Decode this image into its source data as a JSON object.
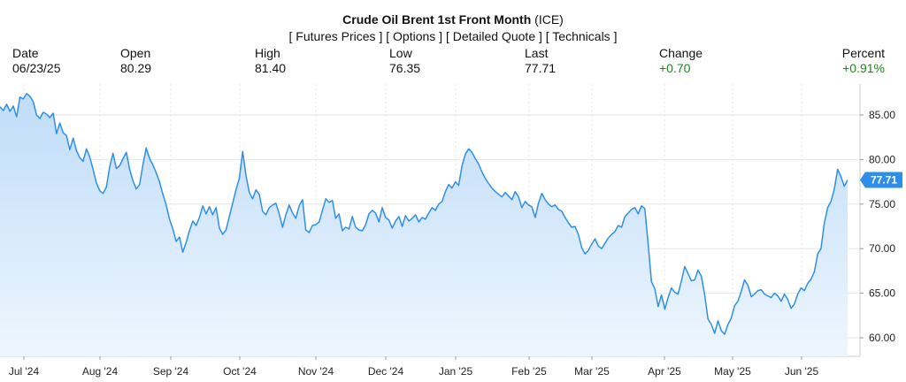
{
  "header": {
    "title": "Crude Oil Brent 1st Front Month",
    "exchange": "(ICE)",
    "links": [
      "[ Futures Prices ]",
      "[ Options ]",
      "[ Detailed Quote ]",
      "[ Technicals ]"
    ]
  },
  "stats": {
    "date": {
      "label": "Date",
      "value": "06/23/25"
    },
    "open": {
      "label": "Open",
      "value": "80.29"
    },
    "high": {
      "label": "High",
      "value": "81.40"
    },
    "low": {
      "label": "Low",
      "value": "76.35"
    },
    "last": {
      "label": "Last",
      "value": "77.71"
    },
    "change": {
      "label": "Change",
      "value": "+0.70"
    },
    "percent": {
      "label": "Percent",
      "value": "+0.91%"
    }
  },
  "colors": {
    "line": "#2f8fe8",
    "area_top": "#bfdcf9",
    "area_bottom": "#eef6fe",
    "grid": "#e6e6e6",
    "positive": "#1a8a1a",
    "last_badge": "#2f8fe8"
  },
  "chart_data": {
    "type": "area",
    "title": "Crude Oil Brent 1st Front Month",
    "xlabel": "",
    "ylabel": "",
    "ylim": [
      59,
      88
    ],
    "y_ticks": [
      "60.00",
      "65.00",
      "70.00",
      "75.00",
      "80.00",
      "85.00"
    ],
    "x_ticks": [
      "Jul '24",
      "Aug '24",
      "Sep '24",
      "Oct '24",
      "Nov '24",
      "Dec '24",
      "Jan '25",
      "Feb '25",
      "Mar '25",
      "Apr '25",
      "May '25",
      "Jun '25"
    ],
    "last_value": "77.71",
    "grid": true,
    "series": [
      {
        "values": [
          85.9,
          85.5,
          86.2,
          85.4,
          86.0,
          84.8,
          87.0,
          86.8,
          87.4,
          87.1,
          86.5,
          85.0,
          84.6,
          85.3,
          85.1,
          84.7,
          85.2,
          82.9,
          84.1,
          83.0,
          82.7,
          81.1,
          82.4,
          81.0,
          80.2,
          79.8,
          81.2,
          80.3,
          78.9,
          77.4,
          76.5,
          76.2,
          76.9,
          79.2,
          80.7,
          79.0,
          79.3,
          80.1,
          80.8,
          78.9,
          77.6,
          76.7,
          77.2,
          79.4,
          81.3,
          80.1,
          79.4,
          78.5,
          77.5,
          76.1,
          74.9,
          73.3,
          72.2,
          70.8,
          71.3,
          69.6,
          70.7,
          72.0,
          73.1,
          72.6,
          73.5,
          74.8,
          73.9,
          74.7,
          73.8,
          74.6,
          72.3,
          71.6,
          72.1,
          73.6,
          75.1,
          76.6,
          77.9,
          80.9,
          78.2,
          76.3,
          75.6,
          76.6,
          76.1,
          74.2,
          73.8,
          74.6,
          74.9,
          75.1,
          73.9,
          72.4,
          73.8,
          74.9,
          74.0,
          73.4,
          74.8,
          75.5,
          72.1,
          71.8,
          72.6,
          72.7,
          73.0,
          74.3,
          75.6,
          75.2,
          75.4,
          73.4,
          73.9,
          72.0,
          72.4,
          72.2,
          73.6,
          72.4,
          72.1,
          72.0,
          72.7,
          73.9,
          74.3,
          74.0,
          73.0,
          74.6,
          73.5,
          73.2,
          72.3,
          73.1,
          73.6,
          72.5,
          73.7,
          73.1,
          73.4,
          73.8,
          73.0,
          73.5,
          73.3,
          74.0,
          74.6,
          74.3,
          75.0,
          75.3,
          76.4,
          77.2,
          76.8,
          77.5,
          77.1,
          79.3,
          80.6,
          81.2,
          80.8,
          80.1,
          79.5,
          78.6,
          77.9,
          77.3,
          76.8,
          76.4,
          76.1,
          75.8,
          76.3,
          75.9,
          75.5,
          76.4,
          75.8,
          74.6,
          75.3,
          74.9,
          74.7,
          73.5,
          75.1,
          76.2,
          75.5,
          75.0,
          74.7,
          74.9,
          74.4,
          74.2,
          73.5,
          72.9,
          72.4,
          72.5,
          71.6,
          70.1,
          69.4,
          69.8,
          70.5,
          71.1,
          70.3,
          70.0,
          70.6,
          71.2,
          71.6,
          71.9,
          72.6,
          72.4,
          73.6,
          74.0,
          74.4,
          74.6,
          73.9,
          74.8,
          74.5,
          70.5,
          66.3,
          65.5,
          63.5,
          64.8,
          63.2,
          64.5,
          65.6,
          65.1,
          64.9,
          66.4,
          68.0,
          67.2,
          66.4,
          66.5,
          67.6,
          66.9,
          64.8,
          62.1,
          61.5,
          60.5,
          61.9,
          60.8,
          60.4,
          61.5,
          62.2,
          63.6,
          64.1,
          65.2,
          66.5,
          65.9,
          64.6,
          64.9,
          65.3,
          65.4,
          64.9,
          64.7,
          64.5,
          65.0,
          64.7,
          64.1,
          64.9,
          64.3,
          63.3,
          63.8,
          64.9,
          65.6,
          65.3,
          66.1,
          66.6,
          67.4,
          69.4,
          70.0,
          72.9,
          74.6,
          75.3,
          76.7,
          78.9,
          78.1,
          77.0,
          77.7
        ]
      }
    ]
  }
}
